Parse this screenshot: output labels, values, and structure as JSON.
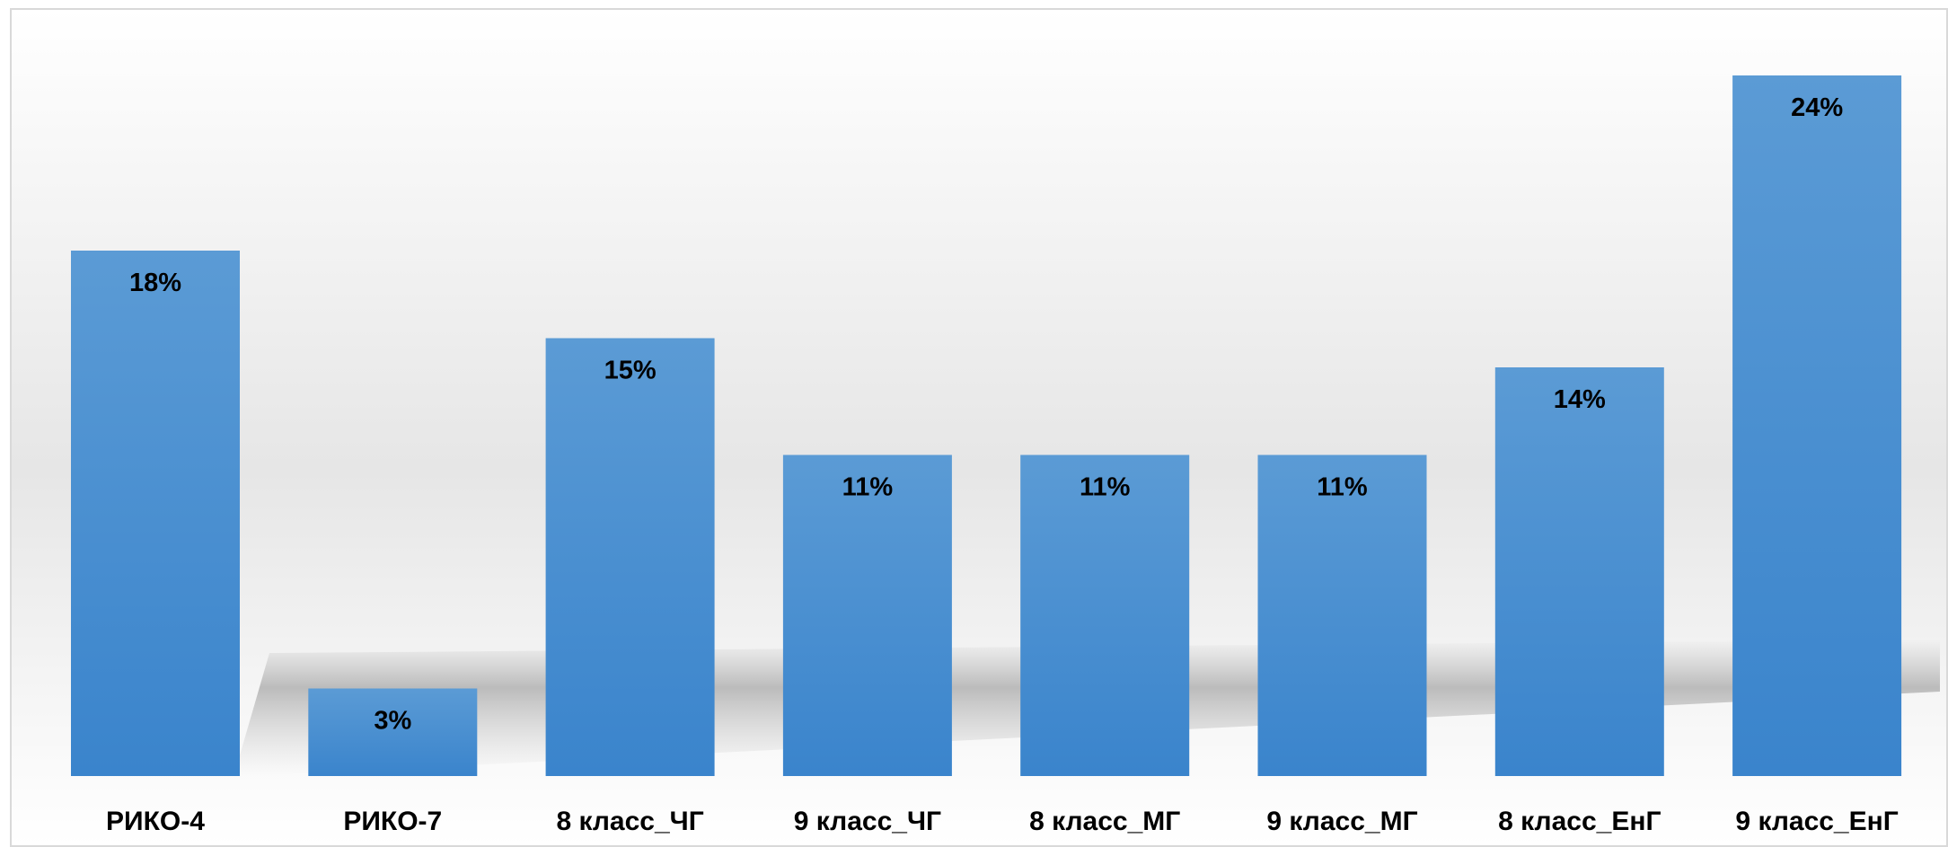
{
  "chart_data": {
    "type": "bar",
    "title": "",
    "xlabel": "",
    "ylabel": "",
    "ylim": [
      0,
      24
    ],
    "grid": false,
    "legend": "none",
    "categories": [
      "РИКО-4",
      "РИКО-7",
      "8 класс_ЧГ",
      "9 класс_ЧГ",
      "8 класс_МГ",
      "9 класс_МГ",
      "8 класс_ЕнГ",
      "9 класс_ЕнГ"
    ],
    "values": [
      18,
      3,
      15,
      11,
      11,
      11,
      14,
      24
    ],
    "data_labels": [
      "18%",
      "3%",
      "15%",
      "11%",
      "11%",
      "11%",
      "14%",
      "24%"
    ],
    "colors": {
      "bar_top": "#5b9bd5",
      "bar_bottom": "#3a84cc",
      "label_text": "#000000",
      "frame": "#d9d9d9"
    }
  }
}
